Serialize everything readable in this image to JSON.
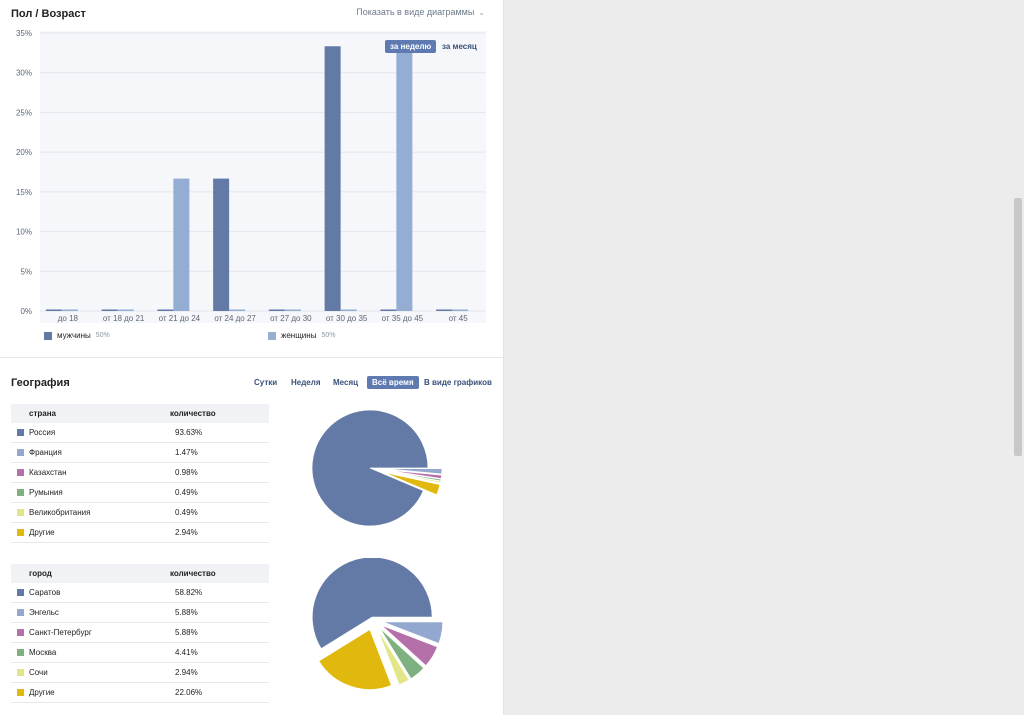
{
  "age_section": {
    "title": "Пол / Возраст",
    "view_toggle": "Показать в виде диаграммы",
    "period_buttons": [
      "за неделю",
      "за месяц"
    ],
    "active_period": "за неделю",
    "legend": [
      {
        "label": "мужчины",
        "percent": "50%",
        "color": "#647aa6"
      },
      {
        "label": "женщины",
        "percent": "50%",
        "color": "#93add3"
      }
    ]
  },
  "chart_data": {
    "type": "bar",
    "title": "",
    "xlabel": "",
    "ylabel": "",
    "categories": [
      "до 18",
      "от 18 до 21",
      "от 21 до 24",
      "от 24 до 27",
      "от 27 до 30",
      "от 30 до 35",
      "от 35 до 45",
      "от 45"
    ],
    "series": [
      {
        "name": "мужчины",
        "color": "#647aa6",
        "values": [
          0,
          0,
          0,
          16.67,
          0,
          33.33,
          0,
          0
        ]
      },
      {
        "name": "женщины",
        "color": "#93add3",
        "values": [
          0,
          0,
          16.67,
          0,
          0,
          0,
          33.33,
          0
        ]
      }
    ],
    "yticks": [
      "35%",
      "30%",
      "25%",
      "20%",
      "15%",
      "10%",
      "5%",
      "0%"
    ],
    "ylim": [
      0,
      35
    ],
    "grid": true
  },
  "geography": {
    "title": "География",
    "tabs": [
      "Сутки",
      "Неделя",
      "Месяц",
      "Всё время",
      "В виде графиков"
    ],
    "active_tab": "Всё время",
    "country_table": {
      "headers": [
        "страна",
        "количество"
      ],
      "rows": [
        {
          "name": "Россия",
          "value": "93.63%",
          "pct": 93.63,
          "color": "#647aa6"
        },
        {
          "name": "Франция",
          "value": "1.47%",
          "pct": 1.47,
          "color": "#93a8cf"
        },
        {
          "name": "Казахстан",
          "value": "0.98%",
          "pct": 0.98,
          "color": "#b56fa9"
        },
        {
          "name": "Румыния",
          "value": "0.49%",
          "pct": 0.49,
          "color": "#7fb07f"
        },
        {
          "name": "Великобритания",
          "value": "0.49%",
          "pct": 0.49,
          "color": "#e1e686"
        },
        {
          "name": "Другие",
          "value": "2.94%",
          "pct": 2.94,
          "color": "#e1b90e"
        }
      ]
    },
    "city_table": {
      "headers": [
        "город",
        "количество"
      ],
      "rows": [
        {
          "name": "Саратов",
          "value": "58.82%",
          "pct": 58.82,
          "color": "#647aa6"
        },
        {
          "name": "Энгельс",
          "value": "5.88%",
          "pct": 5.88,
          "color": "#93a8cf"
        },
        {
          "name": "Санкт-Петербург",
          "value": "5.88%",
          "pct": 5.88,
          "color": "#b56fa9"
        },
        {
          "name": "Москва",
          "value": "4.41%",
          "pct": 4.41,
          "color": "#7fb07f"
        },
        {
          "name": "Сочи",
          "value": "2.94%",
          "pct": 2.94,
          "color": "#e1e686"
        },
        {
          "name": "Другие",
          "value": "22.06%",
          "pct": 22.06,
          "color": "#e1b90e"
        }
      ]
    }
  }
}
